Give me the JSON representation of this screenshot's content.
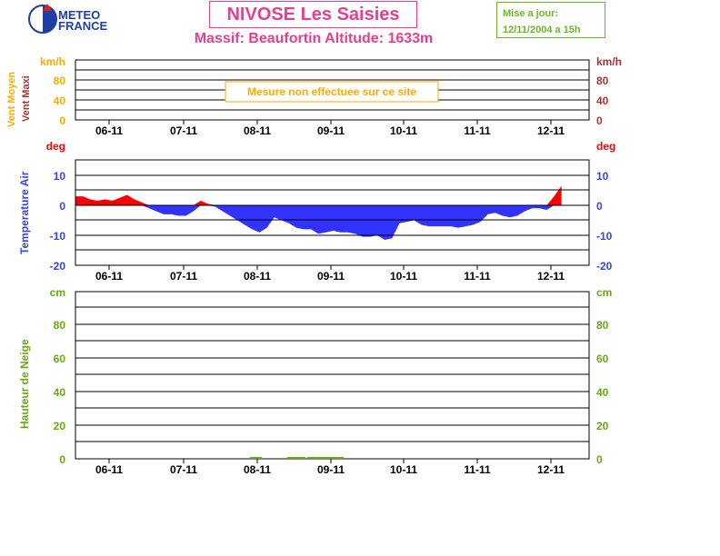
{
  "logo": {
    "brand_line1": "METEO",
    "brand_line2": "FRANCE"
  },
  "header": {
    "title": "NIVOSE Les Saisies",
    "subtitle": "Massif: Beaufortin Altitude: 1633m",
    "update_label": "Mise a jour:",
    "update_value": "12/11/2004 a 15h"
  },
  "colors": {
    "title": "#e83e8c",
    "update": "#66bb22",
    "wind_mean": "#ffaa00",
    "wind_max": "#b03030",
    "temp_axis": "#ff0000",
    "temp_label": "#3344ee",
    "temp_pos": "#ff0000",
    "temp_neg": "#3333ff",
    "snow": "#66aa11"
  },
  "chart_data": [
    {
      "type": "bar",
      "panel": "wind",
      "ylabel_left_1": "Vent Moyen",
      "ylabel_left_2": "Vent Maxi",
      "unit_left": "km/h",
      "unit_right": "km/h",
      "yticks": [
        "80",
        "40",
        "0"
      ],
      "ylim": [
        0,
        120
      ],
      "annotation": "Mesure non effectuee sur ce site",
      "x_ticks": [
        "06-11",
        "07-11",
        "08-11",
        "09-11",
        "10-11",
        "11-11",
        "12-11"
      ],
      "series": []
    },
    {
      "type": "area",
      "panel": "temperature",
      "ylabel": "Temperature Air",
      "unit_left": "deg",
      "unit_right": "deg",
      "yticks": [
        "10",
        "0",
        "-10",
        "-20"
      ],
      "ylim": [
        -20,
        20
      ],
      "x_ticks": [
        "06-11",
        "07-11",
        "08-11",
        "09-11",
        "10-11",
        "11-11",
        "12-11"
      ],
      "x": [
        0,
        0.1,
        0.2,
        0.3,
        0.4,
        0.5,
        0.6,
        0.7,
        0.8,
        0.9,
        1.0,
        1.1,
        1.2,
        1.3,
        1.4,
        1.5,
        1.6,
        1.7,
        1.8,
        1.9,
        2.0,
        2.1,
        2.2,
        2.3,
        2.4,
        2.5,
        2.6,
        2.7,
        2.8,
        2.9,
        3.0,
        3.1,
        3.2,
        3.3,
        3.4,
        3.5,
        3.6,
        3.7,
        3.8,
        3.9,
        4.0,
        4.1,
        4.2,
        4.3,
        4.4,
        4.5,
        4.6,
        4.7,
        4.8,
        4.9,
        5.0,
        5.1,
        5.2,
        5.3,
        5.4,
        5.5,
        5.6,
        5.7,
        5.8,
        5.9,
        6.0,
        6.1,
        6.2,
        6.3,
        6.4,
        6.5,
        6.6
      ],
      "values": [
        3,
        3,
        2,
        1.5,
        2,
        1.5,
        2.5,
        3.5,
        2,
        1,
        -1,
        -2,
        -3,
        -3,
        -3.5,
        -3.5,
        -2,
        1.5,
        0.5,
        -0.5,
        -2,
        -3.5,
        -5,
        -6.5,
        -8,
        -9,
        -7.5,
        -4,
        -5,
        -6,
        -7.5,
        -8,
        -8,
        -9.5,
        -9,
        -8.5,
        -9,
        -9,
        -9.5,
        -10.5,
        -10.5,
        -10,
        -11.5,
        -11,
        -6,
        -5.5,
        -5,
        -6.5,
        -7,
        -7,
        -7,
        -7,
        -7.5,
        -7,
        -6.5,
        -5.5,
        -3,
        -2.5,
        -3.5,
        -4,
        -3.5,
        -2,
        -1,
        -1,
        -1.5,
        3,
        6.5
      ],
      "series": [
        {
          "name": "Temperature Air",
          "values_ref": "values"
        }
      ]
    },
    {
      "type": "bar",
      "panel": "snow",
      "ylabel": "Hauteur de Neige",
      "unit_left": "cm",
      "unit_right": "cm",
      "yticks": [
        "80",
        "60",
        "40",
        "20",
        "0"
      ],
      "ylim": [
        0,
        100
      ],
      "x_ticks": [
        "06-11",
        "07-11",
        "08-11",
        "09-11",
        "10-11",
        "11-11",
        "12-11"
      ],
      "series": [
        {
          "name": "Hauteur de Neige",
          "values": [
            0,
            0,
            0,
            0,
            0,
            0,
            0
          ]
        }
      ]
    }
  ]
}
